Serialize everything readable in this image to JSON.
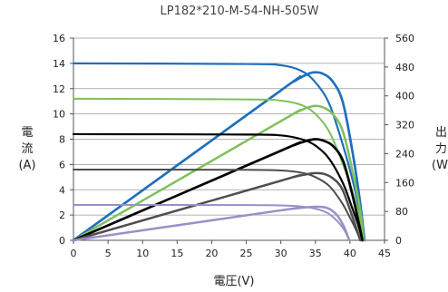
{
  "chart_data": {
    "type": "line",
    "title": "LP182*210-M-54-NH-505W",
    "xlabel": "電圧(V)",
    "ylabel_left": "電流(A)",
    "ylabel_left_chars": [
      "電",
      "流",
      "(A)"
    ],
    "ylabel_right": "出力(W)",
    "ylabel_right_chars": [
      "出",
      "力",
      "(W"
    ],
    "xlim": [
      0,
      45
    ],
    "ylim_left": [
      0,
      16
    ],
    "ylim_right": [
      0,
      560
    ],
    "xticks": [
      "0",
      "5",
      "10",
      "15",
      "20",
      "25",
      "30",
      "35",
      "40",
      "45"
    ],
    "yticks_left": [
      "0",
      "2",
      "4",
      "6",
      "8",
      "10",
      "12",
      "14",
      "16"
    ],
    "yticks_right": [
      "0",
      "80",
      "160",
      "240",
      "320",
      "400",
      "480",
      "560"
    ],
    "grid": "horizontal",
    "series": [
      {
        "color": "#1f6fbd",
        "iv": [
          [
            0,
            14.0
          ],
          [
            25,
            13.95
          ],
          [
            30,
            13.85
          ],
          [
            33,
            13.4
          ],
          [
            35,
            12.5
          ],
          [
            37,
            10.8
          ],
          [
            39,
            7.5
          ],
          [
            40.5,
            4.5
          ],
          [
            41.5,
            2.0
          ],
          [
            42.1,
            0
          ]
        ],
        "pv": [
          [
            0,
            0
          ],
          [
            30,
            415
          ],
          [
            32,
            441
          ],
          [
            33.5,
            457
          ],
          [
            34.7,
            465
          ],
          [
            36,
            462
          ],
          [
            37.5,
            440
          ],
          [
            39,
            380
          ],
          [
            40.5,
            230
          ],
          [
            41.5,
            100
          ],
          [
            42.1,
            0
          ]
        ]
      },
      {
        "color": "#7dc05a",
        "iv": [
          [
            0,
            11.2
          ],
          [
            25,
            11.15
          ],
          [
            30,
            11.05
          ],
          [
            33,
            10.7
          ],
          [
            35,
            10.0
          ],
          [
            37,
            8.6
          ],
          [
            39,
            6.0
          ],
          [
            40.5,
            3.6
          ],
          [
            41.5,
            1.6
          ],
          [
            42.0,
            0
          ]
        ],
        "pv": [
          [
            0,
            0
          ],
          [
            30,
            330
          ],
          [
            32,
            352
          ],
          [
            33.5,
            365
          ],
          [
            34.8,
            372
          ],
          [
            36,
            369
          ],
          [
            37.5,
            350
          ],
          [
            39,
            300
          ],
          [
            40.5,
            180
          ],
          [
            41.5,
            80
          ],
          [
            42.0,
            0
          ]
        ]
      },
      {
        "color": "#000000",
        "iv": [
          [
            0,
            8.4
          ],
          [
            25,
            8.37
          ],
          [
            30,
            8.3
          ],
          [
            33,
            8.0
          ],
          [
            35,
            7.5
          ],
          [
            37,
            6.45
          ],
          [
            39,
            4.5
          ],
          [
            40.3,
            2.6
          ],
          [
            41.2,
            1.2
          ],
          [
            41.8,
            0
          ]
        ],
        "pv": [
          [
            0,
            0
          ],
          [
            30,
            248
          ],
          [
            32,
            264
          ],
          [
            33.5,
            274
          ],
          [
            34.9,
            280
          ],
          [
            36,
            277
          ],
          [
            37.5,
            262
          ],
          [
            39,
            220
          ],
          [
            40.3,
            130
          ],
          [
            41.2,
            55
          ],
          [
            41.8,
            0
          ]
        ]
      },
      {
        "color": "#4d4d4d",
        "iv": [
          [
            0,
            5.6
          ],
          [
            25,
            5.58
          ],
          [
            30,
            5.52
          ],
          [
            33,
            5.35
          ],
          [
            35,
            5.0
          ],
          [
            37,
            4.3
          ],
          [
            38.8,
            3.0
          ],
          [
            40,
            1.8
          ],
          [
            40.9,
            0.8
          ],
          [
            41.5,
            0
          ]
        ],
        "pv": [
          [
            0,
            0
          ],
          [
            30,
            165
          ],
          [
            32,
            176
          ],
          [
            33.5,
            182
          ],
          [
            35,
            186
          ],
          [
            36.2,
            184
          ],
          [
            37.5,
            172
          ],
          [
            38.8,
            145
          ],
          [
            40,
            85
          ],
          [
            40.9,
            35
          ],
          [
            41.5,
            0
          ]
        ]
      },
      {
        "color": "#9a8fc7",
        "iv": [
          [
            0,
            2.8
          ],
          [
            25,
            2.79
          ],
          [
            30,
            2.76
          ],
          [
            33,
            2.67
          ],
          [
            35,
            2.5
          ],
          [
            36.8,
            2.15
          ],
          [
            38.2,
            1.5
          ],
          [
            39.2,
            0.8
          ],
          [
            39.9,
            0
          ]
        ],
        "pv": [
          [
            0,
            0
          ],
          [
            30,
            83
          ],
          [
            32,
            88
          ],
          [
            33.5,
            91
          ],
          [
            35,
            93
          ],
          [
            36.2,
            92
          ],
          [
            37.2,
            85
          ],
          [
            38.2,
            68
          ],
          [
            39.2,
            35
          ],
          [
            39.9,
            0
          ]
        ]
      }
    ]
  }
}
